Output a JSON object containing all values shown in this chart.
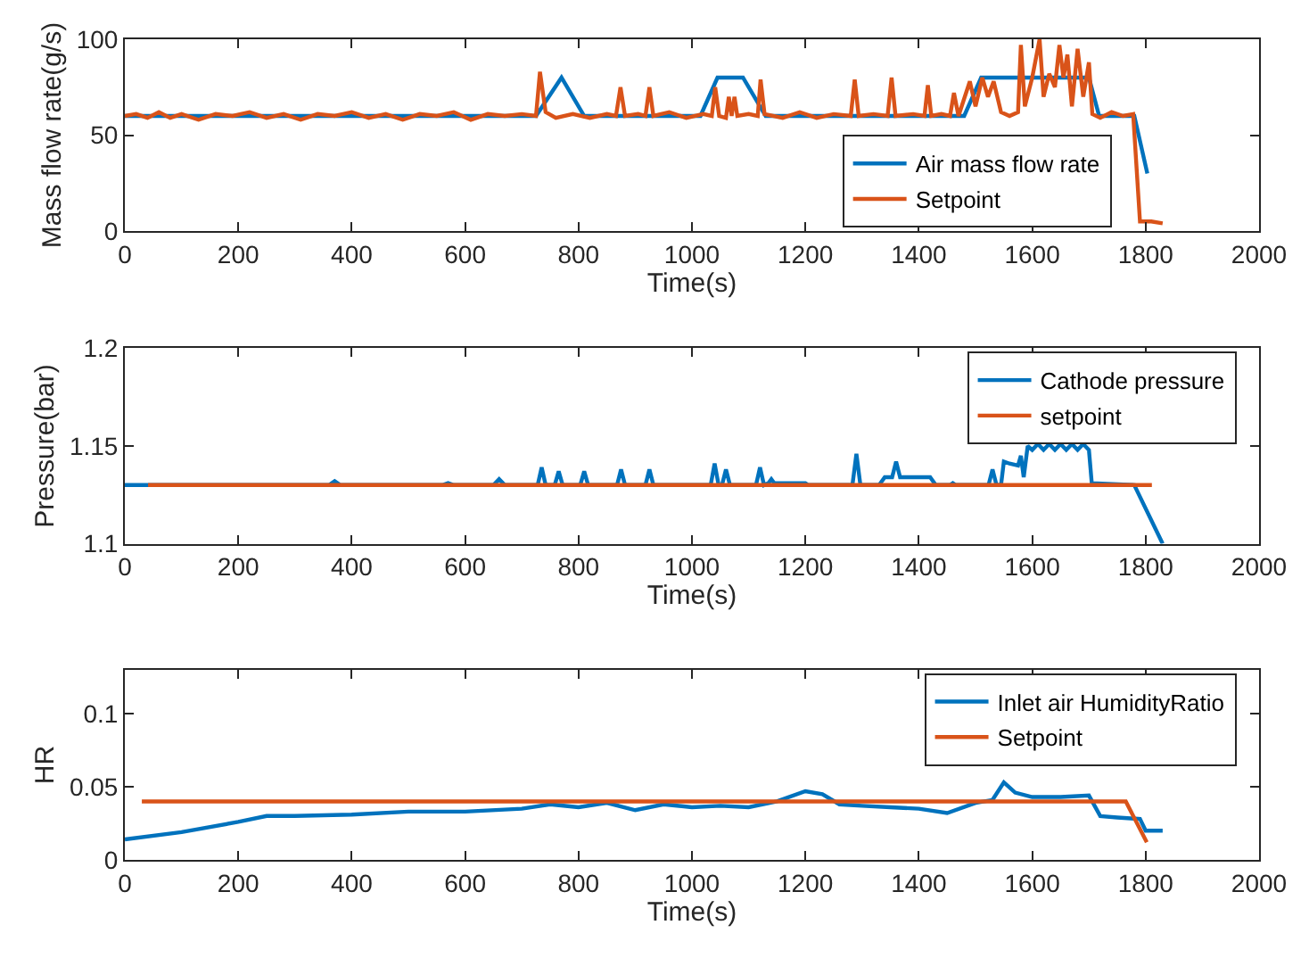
{
  "chart_data": [
    {
      "type": "line",
      "xlabel": "Time(s)",
      "ylabel": "Mass flow rate(g/s)",
      "xlim": [
        0,
        2000
      ],
      "xticks": [
        0,
        200,
        400,
        600,
        800,
        1000,
        1200,
        1400,
        1600,
        1800,
        2000
      ],
      "ylim": [
        0,
        100
      ],
      "yticks": [
        0,
        50,
        100
      ],
      "legend": "bottom right",
      "series": [
        {
          "name": "Air mass flow rate",
          "color": "#0072bd",
          "x": [
            0,
            725,
            770,
            810,
            1015,
            1045,
            1090,
            1130,
            1480,
            1510,
            1700,
            1718,
            1780,
            1803
          ],
          "values": [
            60,
            60,
            80,
            60,
            60,
            80,
            80,
            60,
            60,
            80,
            80,
            60,
            60,
            30
          ]
        },
        {
          "name": "Setpoint",
          "color": "#d95319",
          "x": [
            0,
            20,
            40,
            60,
            80,
            100,
            130,
            160,
            190,
            220,
            250,
            280,
            310,
            340,
            370,
            400,
            430,
            460,
            490,
            520,
            550,
            580,
            610,
            640,
            670,
            700,
            725,
            732,
            742,
            760,
            790,
            820,
            850,
            866,
            874,
            882,
            905,
            918,
            925,
            932,
            960,
            990,
            1020,
            1035,
            1041,
            1048,
            1060,
            1065,
            1070,
            1075,
            1080,
            1100,
            1116,
            1121,
            1128,
            1160,
            1190,
            1220,
            1250,
            1280,
            1287,
            1294,
            1320,
            1345,
            1352,
            1359,
            1390,
            1410,
            1416,
            1422,
            1440,
            1455,
            1462,
            1470,
            1490,
            1500,
            1512,
            1522,
            1532,
            1545,
            1560,
            1575,
            1580,
            1587,
            1600,
            1613,
            1620,
            1630,
            1640,
            1648,
            1655,
            1662,
            1670,
            1680,
            1690,
            1700,
            1706,
            1720,
            1740,
            1760,
            1778,
            1790,
            1810,
            1830
          ],
          "values": [
            60,
            61,
            59,
            62,
            59,
            61,
            58,
            61,
            60,
            62,
            59,
            61,
            58,
            61,
            60,
            62,
            59,
            61,
            58,
            61,
            60,
            62,
            58,
            61,
            60,
            61,
            60,
            83,
            62,
            59,
            61,
            59,
            61,
            60,
            75,
            60,
            61,
            60,
            75,
            60,
            62,
            59,
            61,
            60,
            75,
            60,
            59,
            70,
            60,
            70,
            60,
            61,
            60,
            79,
            61,
            59,
            62,
            59,
            61,
            60,
            79,
            60,
            61,
            60,
            80,
            60,
            61,
            60,
            76,
            60,
            61,
            60,
            72,
            60,
            78,
            65,
            80,
            70,
            78,
            62,
            60,
            62,
            97,
            65,
            80,
            100,
            70,
            82,
            75,
            97,
            80,
            92,
            65,
            95,
            70,
            88,
            61,
            59,
            62,
            60,
            61,
            5,
            5,
            4
          ]
        }
      ]
    },
    {
      "type": "line",
      "xlabel": "Time(s)",
      "ylabel": "Pressure(bar)",
      "xlim": [
        0,
        2000
      ],
      "xticks": [
        0,
        200,
        400,
        600,
        800,
        1000,
        1200,
        1400,
        1600,
        1800,
        2000
      ],
      "ylim": [
        1.1,
        1.2
      ],
      "yticks": [
        1.1,
        1.15,
        1.2
      ],
      "legend": "top right",
      "series": [
        {
          "name": "Cathode pressure",
          "color": "#0072bd",
          "x": [
            0,
            360,
            370,
            380,
            560,
            570,
            580,
            650,
            660,
            670,
            728,
            735,
            742,
            758,
            765,
            772,
            803,
            810,
            817,
            868,
            875,
            882,
            918,
            925,
            932,
            1033,
            1040,
            1047,
            1053,
            1060,
            1067,
            1113,
            1120,
            1127,
            1135,
            1140,
            1145,
            1195,
            1200,
            1205,
            1283,
            1290,
            1297,
            1330,
            1340,
            1353,
            1360,
            1367,
            1380,
            1420,
            1430,
            1455,
            1460,
            1465,
            1523,
            1530,
            1537,
            1545,
            1550,
            1560,
            1575,
            1580,
            1585,
            1592,
            1600,
            1610,
            1620,
            1630,
            1640,
            1650,
            1660,
            1670,
            1680,
            1690,
            1700,
            1705,
            1780,
            1830
          ],
          "values": [
            1.13,
            1.13,
            1.132,
            1.13,
            1.13,
            1.131,
            1.13,
            1.13,
            1.133,
            1.13,
            1.13,
            1.139,
            1.13,
            1.13,
            1.137,
            1.13,
            1.13,
            1.137,
            1.13,
            1.13,
            1.138,
            1.13,
            1.13,
            1.138,
            1.13,
            1.13,
            1.141,
            1.13,
            1.13,
            1.138,
            1.13,
            1.13,
            1.139,
            1.13,
            1.131,
            1.133,
            1.131,
            1.131,
            1.131,
            1.13,
            1.13,
            1.146,
            1.13,
            1.13,
            1.134,
            1.134,
            1.142,
            1.134,
            1.134,
            1.134,
            1.13,
            1.13,
            1.131,
            1.13,
            1.13,
            1.138,
            1.13,
            1.13,
            1.142,
            1.141,
            1.14,
            1.145,
            1.134,
            1.15,
            1.148,
            1.151,
            1.148,
            1.151,
            1.148,
            1.151,
            1.148,
            1.151,
            1.148,
            1.151,
            1.148,
            1.131,
            1.13,
            1.1
          ]
        },
        {
          "name": "setpoint",
          "color": "#d95319",
          "x": [
            41,
            1811
          ],
          "values": [
            1.13,
            1.13
          ]
        }
      ]
    },
    {
      "type": "line",
      "xlabel": "Time(s)",
      "ylabel": "HR",
      "xlim": [
        0,
        2000
      ],
      "xticks": [
        0,
        200,
        400,
        600,
        800,
        1000,
        1200,
        1400,
        1600,
        1800,
        2000
      ],
      "ylim": [
        0,
        0.13
      ],
      "yticks": [
        0,
        0.05,
        0.1
      ],
      "legend": "top right",
      "series": [
        {
          "name": "Inlet air HumidityRatio",
          "color": "#0072bd",
          "x": [
            0,
            100,
            200,
            250,
            300,
            400,
            500,
            600,
            700,
            750,
            800,
            850,
            900,
            950,
            1000,
            1050,
            1100,
            1150,
            1200,
            1230,
            1260,
            1300,
            1350,
            1400,
            1450,
            1500,
            1530,
            1550,
            1570,
            1600,
            1650,
            1700,
            1720,
            1750,
            1790,
            1800,
            1830
          ],
          "values": [
            0.014,
            0.019,
            0.026,
            0.03,
            0.03,
            0.031,
            0.033,
            0.033,
            0.035,
            0.038,
            0.036,
            0.039,
            0.034,
            0.038,
            0.036,
            0.037,
            0.036,
            0.04,
            0.047,
            0.045,
            0.038,
            0.037,
            0.036,
            0.035,
            0.032,
            0.039,
            0.041,
            0.053,
            0.046,
            0.043,
            0.043,
            0.044,
            0.03,
            0.029,
            0.028,
            0.02,
            0.02
          ]
        },
        {
          "name": "Setpoint",
          "color": "#d95319",
          "x": [
            30,
            1765,
            1802
          ],
          "values": [
            0.04,
            0.04,
            0.012
          ]
        }
      ]
    }
  ]
}
